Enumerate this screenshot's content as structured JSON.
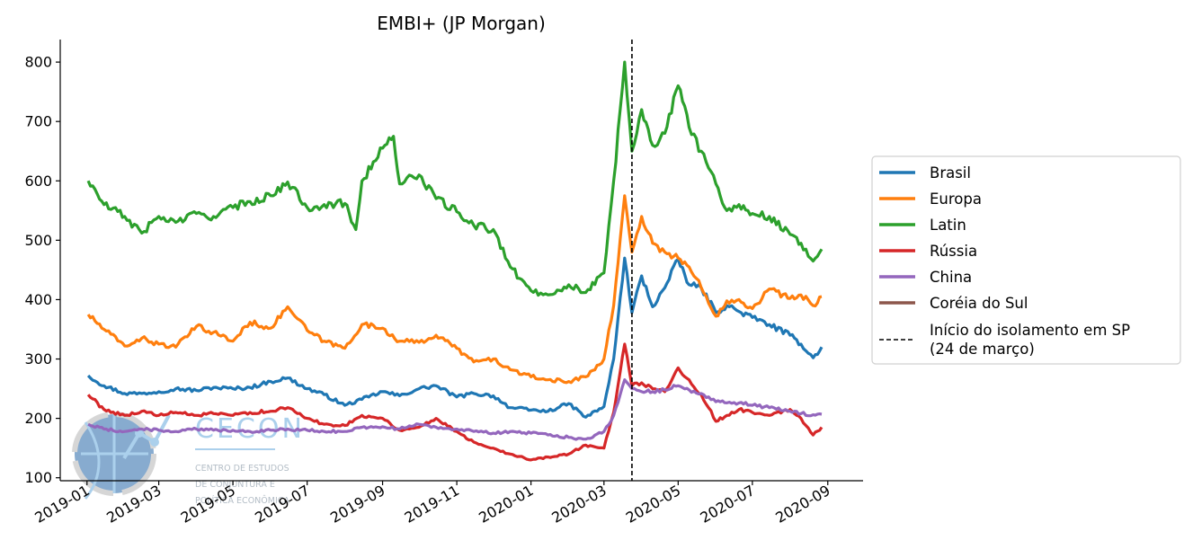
{
  "chart_data": {
    "type": "line",
    "title": "EMBI+ (JP Morgan)",
    "xlabel": "",
    "ylabel": "",
    "ylim": [
      95,
      838
    ],
    "xlim": [
      "2018-12-10",
      "2020-09-30"
    ],
    "y_ticks": [
      100,
      200,
      300,
      400,
      500,
      600,
      700,
      800
    ],
    "x_ticks": [
      "2019-01",
      "2019-03",
      "2019-05",
      "2019-07",
      "2019-09",
      "2019-11",
      "2020-01",
      "2020-03",
      "2020-05",
      "2020-07",
      "2020-09"
    ],
    "grid": false,
    "legend_position": "right",
    "vline": {
      "x": "2020-03-24",
      "label": "Início do isolamento em SP\n(24 de março)",
      "style": "dashed",
      "color": "#000000"
    },
    "series": [
      {
        "name": "Brasil",
        "color": "#1f77b4",
        "points": [
          [
            "2019-01-02",
            272
          ],
          [
            "2019-01-15",
            255
          ],
          [
            "2019-02-01",
            242
          ],
          [
            "2019-02-15",
            242
          ],
          [
            "2019-03-01",
            245
          ],
          [
            "2019-03-15",
            250
          ],
          [
            "2019-04-01",
            247
          ],
          [
            "2019-04-15",
            252
          ],
          [
            "2019-05-01",
            250
          ],
          [
            "2019-05-15",
            252
          ],
          [
            "2019-06-01",
            262
          ],
          [
            "2019-06-15",
            268
          ],
          [
            "2019-07-01",
            250
          ],
          [
            "2019-07-15",
            240
          ],
          [
            "2019-08-01",
            222
          ],
          [
            "2019-08-15",
            232
          ],
          [
            "2019-09-01",
            245
          ],
          [
            "2019-09-15",
            238
          ],
          [
            "2019-10-01",
            250
          ],
          [
            "2019-10-15",
            255
          ],
          [
            "2019-11-01",
            236
          ],
          [
            "2019-11-15",
            242
          ],
          [
            "2019-12-01",
            238
          ],
          [
            "2019-12-15",
            218
          ],
          [
            "2020-01-01",
            214
          ],
          [
            "2020-01-15",
            212
          ],
          [
            "2020-02-01",
            225
          ],
          [
            "2020-02-15",
            202
          ],
          [
            "2020-03-01",
            220
          ],
          [
            "2020-03-09",
            300
          ],
          [
            "2020-03-18",
            470
          ],
          [
            "2020-03-24",
            378
          ],
          [
            "2020-04-01",
            440
          ],
          [
            "2020-04-10",
            388
          ],
          [
            "2020-04-20",
            420
          ],
          [
            "2020-05-01",
            468
          ],
          [
            "2020-05-10",
            425
          ],
          [
            "2020-05-20",
            420
          ],
          [
            "2020-06-01",
            378
          ],
          [
            "2020-06-10",
            390
          ],
          [
            "2020-06-20",
            380
          ],
          [
            "2020-07-01",
            370
          ],
          [
            "2020-07-15",
            358
          ],
          [
            "2020-08-01",
            340
          ],
          [
            "2020-08-10",
            325
          ],
          [
            "2020-08-20",
            302
          ],
          [
            "2020-08-27",
            320
          ]
        ]
      },
      {
        "name": "Europa",
        "color": "#ff7f0e",
        "points": [
          [
            "2019-01-02",
            375
          ],
          [
            "2019-01-15",
            350
          ],
          [
            "2019-02-01",
            322
          ],
          [
            "2019-02-15",
            335
          ],
          [
            "2019-03-01",
            325
          ],
          [
            "2019-03-15",
            320
          ],
          [
            "2019-04-01",
            355
          ],
          [
            "2019-04-15",
            345
          ],
          [
            "2019-05-01",
            330
          ],
          [
            "2019-05-15",
            362
          ],
          [
            "2019-06-01",
            352
          ],
          [
            "2019-06-15",
            388
          ],
          [
            "2019-07-01",
            348
          ],
          [
            "2019-07-15",
            330
          ],
          [
            "2019-08-01",
            318
          ],
          [
            "2019-08-15",
            358
          ],
          [
            "2019-09-01",
            352
          ],
          [
            "2019-09-15",
            330
          ],
          [
            "2019-10-01",
            328
          ],
          [
            "2019-10-15",
            340
          ],
          [
            "2019-11-01",
            318
          ],
          [
            "2019-11-15",
            295
          ],
          [
            "2019-12-01",
            300
          ],
          [
            "2019-12-15",
            282
          ],
          [
            "2020-01-01",
            270
          ],
          [
            "2020-01-15",
            265
          ],
          [
            "2020-02-01",
            262
          ],
          [
            "2020-02-15",
            270
          ],
          [
            "2020-03-01",
            300
          ],
          [
            "2020-03-09",
            390
          ],
          [
            "2020-03-18",
            575
          ],
          [
            "2020-03-24",
            480
          ],
          [
            "2020-04-01",
            540
          ],
          [
            "2020-04-10",
            495
          ],
          [
            "2020-04-20",
            480
          ],
          [
            "2020-05-01",
            470
          ],
          [
            "2020-05-10",
            455
          ],
          [
            "2020-05-20",
            420
          ],
          [
            "2020-06-01",
            372
          ],
          [
            "2020-06-10",
            398
          ],
          [
            "2020-06-20",
            400
          ],
          [
            "2020-07-01",
            385
          ],
          [
            "2020-07-15",
            418
          ],
          [
            "2020-08-01",
            402
          ],
          [
            "2020-08-10",
            408
          ],
          [
            "2020-08-20",
            390
          ],
          [
            "2020-08-27",
            405
          ]
        ]
      },
      {
        "name": "Latin",
        "color": "#2ca02c",
        "points": [
          [
            "2019-01-02",
            600
          ],
          [
            "2019-01-15",
            560
          ],
          [
            "2019-02-01",
            540
          ],
          [
            "2019-02-15",
            512
          ],
          [
            "2019-03-01",
            540
          ],
          [
            "2019-03-15",
            530
          ],
          [
            "2019-04-01",
            545
          ],
          [
            "2019-04-15",
            540
          ],
          [
            "2019-05-01",
            555
          ],
          [
            "2019-05-15",
            565
          ],
          [
            "2019-06-01",
            575
          ],
          [
            "2019-06-15",
            598
          ],
          [
            "2019-07-01",
            555
          ],
          [
            "2019-07-15",
            560
          ],
          [
            "2019-08-01",
            562
          ],
          [
            "2019-08-10",
            518
          ],
          [
            "2019-08-15",
            600
          ],
          [
            "2019-09-01",
            655
          ],
          [
            "2019-09-10",
            675
          ],
          [
            "2019-09-15",
            595
          ],
          [
            "2019-10-01",
            610
          ],
          [
            "2019-10-15",
            570
          ],
          [
            "2019-11-01",
            548
          ],
          [
            "2019-11-15",
            525
          ],
          [
            "2019-12-01",
            518
          ],
          [
            "2019-12-15",
            455
          ],
          [
            "2020-01-01",
            415
          ],
          [
            "2020-01-15",
            408
          ],
          [
            "2020-02-01",
            425
          ],
          [
            "2020-02-15",
            412
          ],
          [
            "2020-03-01",
            445
          ],
          [
            "2020-03-09",
            600
          ],
          [
            "2020-03-18",
            800
          ],
          [
            "2020-03-24",
            650
          ],
          [
            "2020-04-01",
            720
          ],
          [
            "2020-04-10",
            660
          ],
          [
            "2020-04-20",
            680
          ],
          [
            "2020-05-01",
            760
          ],
          [
            "2020-05-10",
            690
          ],
          [
            "2020-05-20",
            650
          ],
          [
            "2020-06-01",
            595
          ],
          [
            "2020-06-10",
            550
          ],
          [
            "2020-06-20",
            560
          ],
          [
            "2020-07-01",
            545
          ],
          [
            "2020-07-15",
            540
          ],
          [
            "2020-08-01",
            510
          ],
          [
            "2020-08-10",
            495
          ],
          [
            "2020-08-20",
            465
          ],
          [
            "2020-08-27",
            485
          ]
        ]
      },
      {
        "name": "Rússia",
        "color": "#d62728",
        "points": [
          [
            "2019-01-02",
            240
          ],
          [
            "2019-01-15",
            215
          ],
          [
            "2019-02-01",
            205
          ],
          [
            "2019-02-15",
            212
          ],
          [
            "2019-03-01",
            205
          ],
          [
            "2019-03-15",
            210
          ],
          [
            "2019-04-01",
            205
          ],
          [
            "2019-04-15",
            208
          ],
          [
            "2019-05-01",
            205
          ],
          [
            "2019-05-15",
            210
          ],
          [
            "2019-06-01",
            212
          ],
          [
            "2019-06-15",
            218
          ],
          [
            "2019-07-01",
            200
          ],
          [
            "2019-07-15",
            190
          ],
          [
            "2019-08-01",
            188
          ],
          [
            "2019-08-15",
            205
          ],
          [
            "2019-09-01",
            200
          ],
          [
            "2019-09-15",
            180
          ],
          [
            "2019-10-01",
            185
          ],
          [
            "2019-10-15",
            200
          ],
          [
            "2019-11-01",
            178
          ],
          [
            "2019-11-15",
            160
          ],
          [
            "2019-12-01",
            150
          ],
          [
            "2019-12-15",
            140
          ],
          [
            "2020-01-01",
            130
          ],
          [
            "2020-01-15",
            135
          ],
          [
            "2020-02-01",
            140
          ],
          [
            "2020-02-15",
            155
          ],
          [
            "2020-03-01",
            150
          ],
          [
            "2020-03-09",
            210
          ],
          [
            "2020-03-18",
            325
          ],
          [
            "2020-03-24",
            255
          ],
          [
            "2020-04-01",
            260
          ],
          [
            "2020-04-10",
            250
          ],
          [
            "2020-04-20",
            245
          ],
          [
            "2020-05-01",
            285
          ],
          [
            "2020-05-10",
            265
          ],
          [
            "2020-05-20",
            240
          ],
          [
            "2020-06-01",
            195
          ],
          [
            "2020-06-10",
            205
          ],
          [
            "2020-06-20",
            215
          ],
          [
            "2020-07-01",
            210
          ],
          [
            "2020-07-15",
            205
          ],
          [
            "2020-08-01",
            215
          ],
          [
            "2020-08-10",
            200
          ],
          [
            "2020-08-20",
            172
          ],
          [
            "2020-08-27",
            185
          ]
        ]
      },
      {
        "name": "China",
        "color": "#9467bd",
        "points": [
          [
            "2019-01-02",
            190
          ],
          [
            "2019-01-15",
            182
          ],
          [
            "2019-02-01",
            178
          ],
          [
            "2019-02-15",
            182
          ],
          [
            "2019-03-01",
            180
          ],
          [
            "2019-03-15",
            178
          ],
          [
            "2019-04-01",
            182
          ],
          [
            "2019-04-15",
            180
          ],
          [
            "2019-05-01",
            180
          ],
          [
            "2019-05-15",
            178
          ],
          [
            "2019-06-01",
            180
          ],
          [
            "2019-06-15",
            182
          ],
          [
            "2019-07-01",
            180
          ],
          [
            "2019-07-15",
            178
          ],
          [
            "2019-08-01",
            178
          ],
          [
            "2019-08-15",
            185
          ],
          [
            "2019-09-01",
            186
          ],
          [
            "2019-09-15",
            182
          ],
          [
            "2019-10-01",
            190
          ],
          [
            "2019-10-15",
            185
          ],
          [
            "2019-11-01",
            182
          ],
          [
            "2019-11-15",
            178
          ],
          [
            "2019-12-01",
            175
          ],
          [
            "2019-12-15",
            178
          ],
          [
            "2020-01-01",
            175
          ],
          [
            "2020-01-15",
            172
          ],
          [
            "2020-02-01",
            168
          ],
          [
            "2020-02-15",
            165
          ],
          [
            "2020-03-01",
            178
          ],
          [
            "2020-03-09",
            205
          ],
          [
            "2020-03-18",
            265
          ],
          [
            "2020-03-24",
            250
          ],
          [
            "2020-04-01",
            245
          ],
          [
            "2020-04-10",
            245
          ],
          [
            "2020-04-20",
            248
          ],
          [
            "2020-05-01",
            255
          ],
          [
            "2020-05-10",
            248
          ],
          [
            "2020-05-20",
            242
          ],
          [
            "2020-06-01",
            228
          ],
          [
            "2020-06-10",
            226
          ],
          [
            "2020-06-20",
            226
          ],
          [
            "2020-07-01",
            222
          ],
          [
            "2020-07-15",
            218
          ],
          [
            "2020-08-01",
            212
          ],
          [
            "2020-08-10",
            208
          ],
          [
            "2020-08-20",
            206
          ],
          [
            "2020-08-27",
            207
          ]
        ]
      },
      {
        "name": "Coréia do Sul",
        "color": "#8c564b",
        "points": []
      }
    ]
  },
  "watermark": {
    "name": "CECON",
    "tagline_1": "CENTRO DE ESTUDOS",
    "tagline_2": "DE CONJUNTURA E",
    "tagline_3": "POLÍTICA ECONÔMICA"
  }
}
